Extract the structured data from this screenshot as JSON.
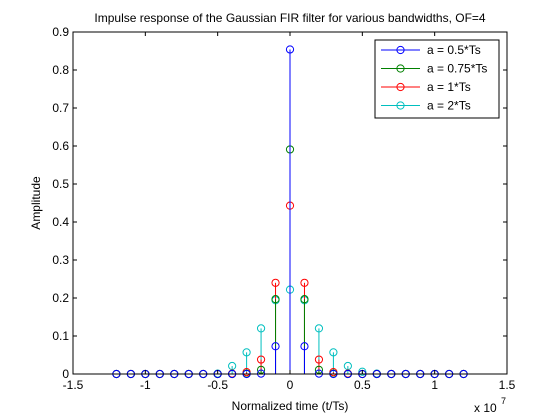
{
  "chart_data": {
    "type": "stem",
    "title": "Impulse response of the Gaussian FIR filter for various bandwidths, OF=4",
    "xlabel": "Normalized time (t/Ts)",
    "ylabel": "Amplitude",
    "x_exponent_label": "x 10",
    "x_exponent": "7",
    "xlim": [
      -1.5,
      1.5
    ],
    "ylim": [
      0,
      0.9
    ],
    "xticks": [
      -1.5,
      -1,
      -0.5,
      0,
      0.5,
      1,
      1.5
    ],
    "xtick_labels": [
      "-1.5",
      "-1",
      "-0.5",
      "0",
      "0.5",
      "1",
      "1.5"
    ],
    "yticks": [
      0,
      0.1,
      0.2,
      0.3,
      0.4,
      0.5,
      0.6,
      0.7,
      0.8,
      0.9
    ],
    "ytick_labels": [
      "0",
      "0.1",
      "0.2",
      "0.3",
      "0.4",
      "0.5",
      "0.6",
      "0.7",
      "0.8",
      "0.9"
    ],
    "grid": false,
    "legend_position": "top-right",
    "x": [
      -1.2,
      -1.1,
      -1.0,
      -0.9,
      -0.8,
      -0.7,
      -0.6,
      -0.5,
      -0.4,
      -0.3,
      -0.2,
      -0.1,
      0,
      0.1,
      0.2,
      0.3,
      0.4,
      0.5,
      0.6,
      0.7,
      0.8,
      0.9,
      1.0,
      1.1,
      1.2
    ],
    "series": [
      {
        "name": "a = 0.5*Ts",
        "color": "#0000ff",
        "values": [
          0,
          0,
          0,
          0,
          0,
          0,
          0,
          0,
          0,
          0,
          0.001,
          0.073,
          0.854,
          0.073,
          0.001,
          0,
          0,
          0,
          0,
          0,
          0,
          0,
          0,
          0,
          0
        ]
      },
      {
        "name": "a = 0.75*Ts",
        "color": "#008000",
        "values": [
          0,
          0,
          0,
          0,
          0,
          0,
          0,
          0,
          0,
          0.001,
          0.011,
          0.197,
          0.591,
          0.197,
          0.011,
          0.001,
          0,
          0,
          0,
          0,
          0,
          0,
          0,
          0,
          0
        ]
      },
      {
        "name": "a = 1*Ts",
        "color": "#ff0000",
        "values": [
          0,
          0,
          0,
          0,
          0,
          0,
          0,
          0,
          0.001,
          0.005,
          0.038,
          0.24,
          0.443,
          0.24,
          0.038,
          0.005,
          0.001,
          0,
          0,
          0,
          0,
          0,
          0,
          0,
          0
        ]
      },
      {
        "name": "a = 2*Ts",
        "color": "#00bfbf",
        "values": [
          0,
          0,
          0,
          0,
          0,
          0,
          0,
          0.001,
          0.021,
          0.057,
          0.12,
          0.194,
          0.222,
          0.194,
          0.12,
          0.057,
          0.021,
          0.006,
          0.001,
          0,
          0,
          0,
          0,
          0,
          0
        ]
      }
    ]
  }
}
